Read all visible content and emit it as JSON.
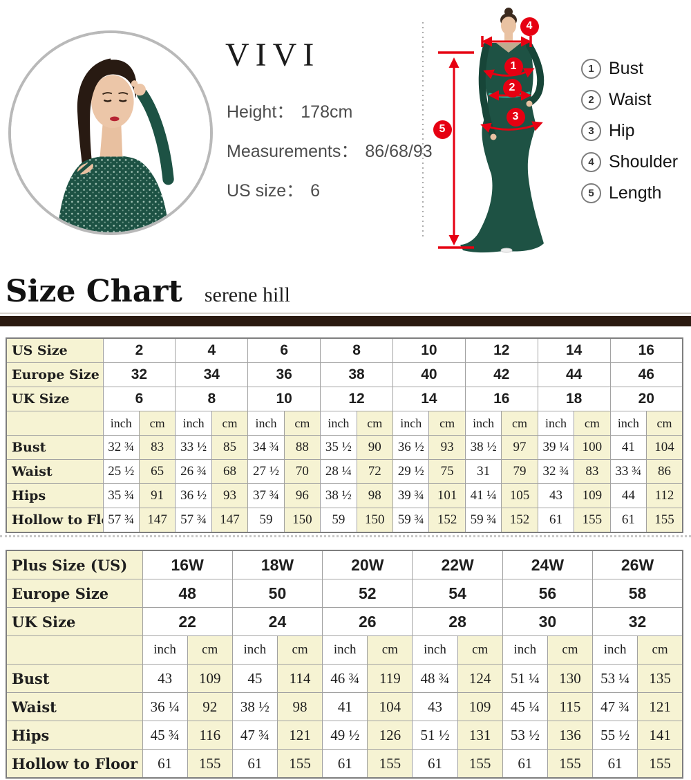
{
  "colors": {
    "accent_red": "#e60012",
    "cream_cell": "#f6f3d3",
    "brown_bar": "#2b1a10",
    "dress_green": "#1e5244",
    "ring_gray": "#b9b9b9"
  },
  "model": {
    "name": "VIVI",
    "height_label": "Height：",
    "height_value": "178cm",
    "measurements_label": "Measurements：",
    "measurements_value": "86/68/93",
    "us_size_label": "US size：",
    "us_size_value": "6"
  },
  "diagram": {
    "legend": [
      {
        "num": "1",
        "label": "Bust"
      },
      {
        "num": "2",
        "label": "Waist"
      },
      {
        "num": "3",
        "label": "Hip"
      },
      {
        "num": "4",
        "label": "Shoulder"
      },
      {
        "num": "5",
        "label": "Length"
      }
    ]
  },
  "section": {
    "title": "Size Chart",
    "subtitle": "serene hill"
  },
  "size_table": {
    "header_rows": [
      {
        "label": "US Size",
        "values": [
          "2",
          "4",
          "6",
          "8",
          "10",
          "12",
          "14",
          "16"
        ]
      },
      {
        "label": "Europe Size",
        "values": [
          "32",
          "34",
          "36",
          "38",
          "40",
          "42",
          "44",
          "46"
        ]
      },
      {
        "label": "UK Size",
        "values": [
          "6",
          "8",
          "10",
          "12",
          "14",
          "16",
          "18",
          "20"
        ]
      }
    ],
    "unit_row": {
      "inch": "inch",
      "cm": "cm"
    },
    "rows": [
      {
        "label": "Bust",
        "inch": [
          "32 ¾",
          "33 ½",
          "34 ¾",
          "35 ½",
          "36 ½",
          "38 ½",
          "39 ¼",
          "41"
        ],
        "cm": [
          "83",
          "85",
          "88",
          "90",
          "93",
          "97",
          "100",
          "104"
        ]
      },
      {
        "label": "Waist",
        "inch": [
          "25 ½",
          "26 ¾",
          "27 ½",
          "28 ¼",
          "29 ½",
          "31",
          "32 ¾",
          "33 ¾"
        ],
        "cm": [
          "65",
          "68",
          "70",
          "72",
          "75",
          "79",
          "83",
          "86"
        ]
      },
      {
        "label": "Hips",
        "inch": [
          "35 ¾",
          "36 ½",
          "37 ¾",
          "38 ½",
          "39 ¾",
          "41 ¼",
          "43",
          "44"
        ],
        "cm": [
          "91",
          "93",
          "96",
          "98",
          "101",
          "105",
          "109",
          "112"
        ]
      },
      {
        "label": "Hollow to Floor",
        "inch": [
          "57 ¾",
          "57 ¾",
          "59",
          "59",
          "59 ¾",
          "59 ¾",
          "61",
          "61"
        ],
        "cm": [
          "147",
          "147",
          "150",
          "150",
          "152",
          "152",
          "155",
          "155"
        ]
      }
    ]
  },
  "plus_table": {
    "header_rows": [
      {
        "label": "Plus Size (US)",
        "values": [
          "16W",
          "18W",
          "20W",
          "22W",
          "24W",
          "26W"
        ]
      },
      {
        "label": "Europe Size",
        "values": [
          "48",
          "50",
          "52",
          "54",
          "56",
          "58"
        ]
      },
      {
        "label": "UK Size",
        "values": [
          "22",
          "24",
          "26",
          "28",
          "30",
          "32"
        ]
      }
    ],
    "unit_row": {
      "inch": "inch",
      "cm": "cm"
    },
    "rows": [
      {
        "label": "Bust",
        "inch": [
          "43",
          "45",
          "46 ¾",
          "48 ¾",
          "51 ¼",
          "53 ¼"
        ],
        "cm": [
          "109",
          "114",
          "119",
          "124",
          "130",
          "135"
        ]
      },
      {
        "label": "Waist",
        "inch": [
          "36 ¼",
          "38 ½",
          "41",
          "43",
          "45 ¼",
          "47 ¾"
        ],
        "cm": [
          "92",
          "98",
          "104",
          "109",
          "115",
          "121"
        ]
      },
      {
        "label": "Hips",
        "inch": [
          "45 ¾",
          "47 ¾",
          "49 ½",
          "51 ½",
          "53 ½",
          "55 ½"
        ],
        "cm": [
          "116",
          "121",
          "126",
          "131",
          "136",
          "141"
        ]
      },
      {
        "label": "Hollow to Floor",
        "inch": [
          "61",
          "61",
          "61",
          "61",
          "61",
          "61"
        ],
        "cm": [
          "155",
          "155",
          "155",
          "155",
          "155",
          "155"
        ]
      }
    ]
  }
}
